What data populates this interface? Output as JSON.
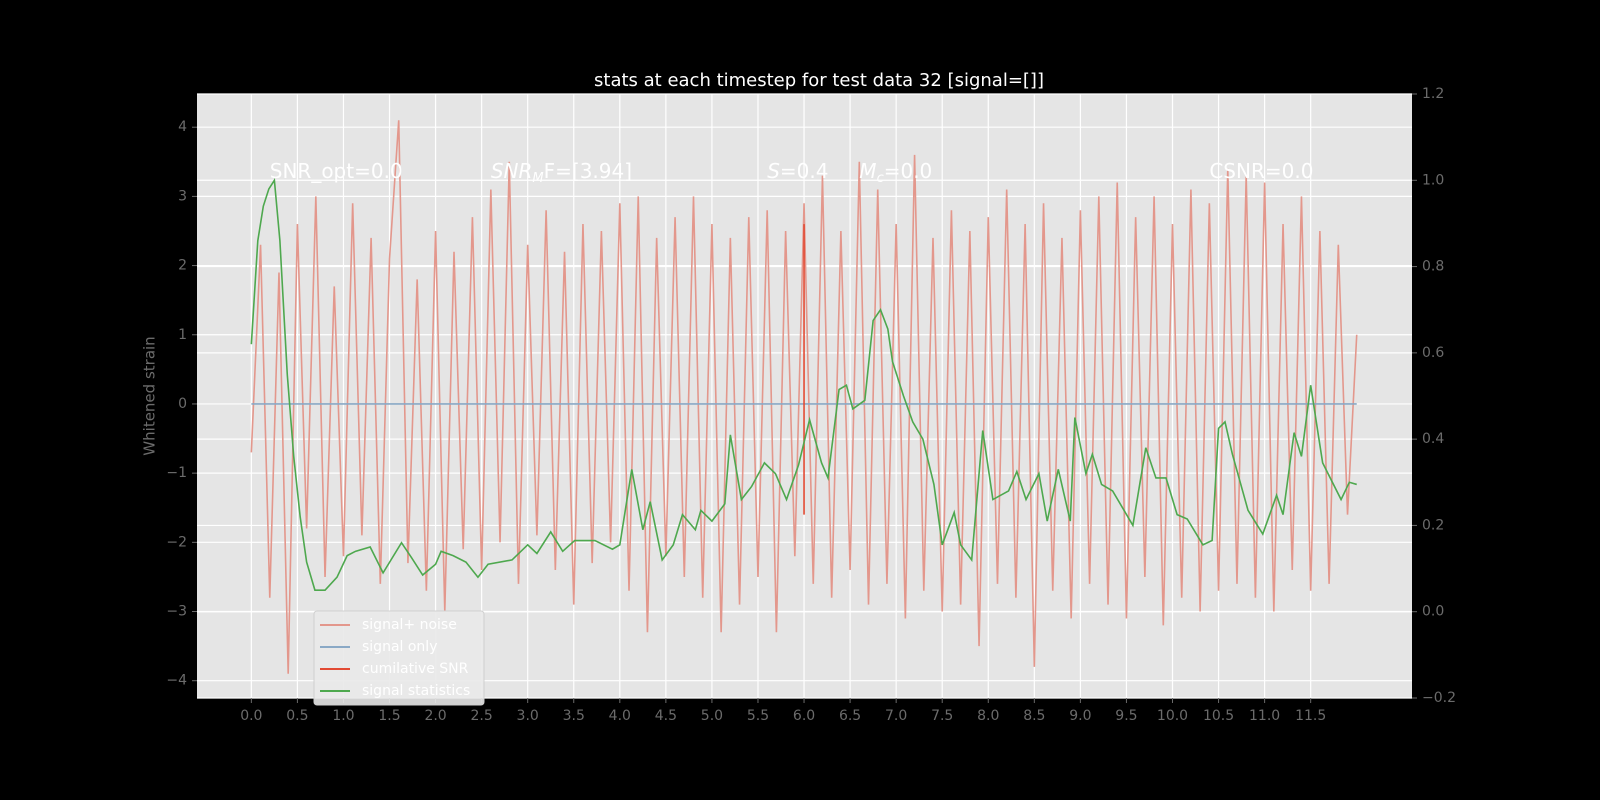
{
  "chart_data": {
    "type": "line",
    "title": "stats at each timestep for test data 32 [signal=[]]",
    "y_label": "Whitened strain",
    "xlim": [
      -0.59,
      12.6
    ],
    "ylim": [
      -4.25,
      4.48
    ],
    "y2lim": [
      -0.2,
      1.2
    ],
    "xticks": [
      {
        "value": 0,
        "label": "0.0"
      },
      {
        "value": 0.5,
        "label": "0.5"
      },
      {
        "value": 1,
        "label": "1.0"
      },
      {
        "value": 1.5,
        "label": "1.5"
      },
      {
        "value": 2,
        "label": "2.0"
      },
      {
        "value": 2.5,
        "label": "2.5"
      },
      {
        "value": 3,
        "label": "3.0"
      },
      {
        "value": 3.5,
        "label": "3.5"
      },
      {
        "value": 4,
        "label": "4.0"
      },
      {
        "value": 4.5,
        "label": "4.5"
      },
      {
        "value": 5,
        "label": "5.0"
      },
      {
        "value": 5.5,
        "label": "5.5"
      },
      {
        "value": 6,
        "label": "6.0"
      },
      {
        "value": 6.5,
        "label": "6.5"
      },
      {
        "value": 7,
        "label": "7.0"
      },
      {
        "value": 7.5,
        "label": "7.5"
      },
      {
        "value": 8,
        "label": "8.0"
      },
      {
        "value": 8.5,
        "label": "8.5"
      },
      {
        "value": 9,
        "label": "9.0"
      },
      {
        "value": 9.5,
        "label": "9.5"
      },
      {
        "value": 10,
        "label": "10.0"
      },
      {
        "value": 10.5,
        "label": "10.5"
      },
      {
        "value": 11,
        "label": "11.0"
      },
      {
        "value": 11.5,
        "label": "11.5"
      }
    ],
    "yticks": [
      {
        "value": -4,
        "label": "−4"
      },
      {
        "value": -3,
        "label": "−3"
      },
      {
        "value": -2,
        "label": "−2"
      },
      {
        "value": -1,
        "label": "−1"
      },
      0,
      1,
      2,
      3,
      4
    ],
    "y2ticks": [
      {
        "value": -0.2,
        "label": "−0.2"
      },
      {
        "value": 0,
        "label": "0.0"
      },
      {
        "value": 0.2,
        "label": "0.2"
      },
      {
        "value": 0.4,
        "label": "0.4"
      },
      {
        "value": 0.6,
        "label": "0.6"
      },
      {
        "value": 0.8,
        "label": "0.8"
      },
      {
        "value": 1,
        "label": "1.0"
      },
      {
        "value": 1.2,
        "label": "1.2"
      }
    ],
    "grid": true,
    "legend": "lower left",
    "series": [
      {
        "name": "signal+ noise",
        "color": "#e3978c",
        "x": [
          0,
          0.1,
          0.2,
          0.3,
          0.4,
          0.5,
          0.6,
          0.7,
          0.8,
          0.9,
          1,
          1.1,
          1.2,
          1.3,
          1.4,
          1.5,
          1.6,
          1.7,
          1.8,
          1.9,
          2,
          2.1,
          2.2,
          2.3,
          2.4,
          2.5,
          2.6,
          2.7,
          2.8,
          2.9,
          3,
          3.1,
          3.2,
          3.3,
          3.4,
          3.5,
          3.6,
          3.7,
          3.8,
          3.9,
          4,
          4.1,
          4.2,
          4.3,
          4.4,
          4.5,
          4.6,
          4.7,
          4.8,
          4.9,
          5,
          5.1,
          5.2,
          5.3,
          5.4,
          5.5,
          5.6,
          5.7,
          5.8,
          5.9,
          6,
          6.1,
          6.2,
          6.3,
          6.4,
          6.5,
          6.6,
          6.7,
          6.8,
          6.9,
          7,
          7.1,
          7.2,
          7.3,
          7.4,
          7.5,
          7.6,
          7.7,
          7.8,
          7.9,
          8,
          8.1,
          8.2,
          8.3,
          8.4,
          8.5,
          8.6,
          8.7,
          8.8,
          8.9,
          9,
          9.1,
          9.2,
          9.3,
          9.4,
          9.5,
          9.6,
          9.7,
          9.8,
          9.9,
          10,
          10.1,
          10.2,
          10.3,
          10.4,
          10.5,
          10.6,
          10.7,
          10.8,
          10.9,
          11,
          11.1,
          11.2,
          11.3,
          11.4,
          11.5,
          11.6,
          11.7,
          11.8,
          11.9,
          12
        ],
        "values": [
          -0.7,
          2.3,
          -2.8,
          1.9,
          -3.9,
          2.6,
          -1.8,
          3.0,
          -2.5,
          1.7,
          -2.2,
          2.9,
          -1.9,
          2.4,
          -2.6,
          2.1,
          4.1,
          -2.3,
          1.8,
          -2.7,
          2.5,
          -3.0,
          2.2,
          -2.1,
          2.7,
          -2.4,
          3.1,
          -2.0,
          3.5,
          -2.6,
          2.3,
          -1.9,
          2.8,
          -2.4,
          2.2,
          -2.9,
          2.6,
          -2.3,
          2.5,
          -2.0,
          2.9,
          -2.7,
          3.0,
          -3.3,
          2.4,
          -2.2,
          2.7,
          -2.5,
          3.0,
          -2.8,
          2.6,
          -3.3,
          2.4,
          -2.9,
          2.7,
          -2.5,
          2.8,
          -3.3,
          2.5,
          -2.2,
          2.9,
          -2.6,
          3.3,
          -2.8,
          2.5,
          -2.4,
          3.5,
          -2.9,
          3.1,
          -2.6,
          2.6,
          -3.1,
          3.6,
          -2.7,
          2.4,
          -3.0,
          2.8,
          -2.9,
          2.5,
          -3.5,
          2.7,
          -2.6,
          3.1,
          -2.8,
          2.6,
          -3.8,
          2.9,
          -2.7,
          2.4,
          -3.1,
          2.8,
          -2.6,
          3.0,
          -2.9,
          3.2,
          -3.1,
          2.7,
          -2.5,
          3.0,
          -3.2,
          2.6,
          -2.8,
          3.1,
          -3.0,
          2.9,
          -2.7,
          3.4,
          -2.6,
          3.3,
          -2.8,
          3.2,
          -3.0,
          2.6,
          -2.4,
          3.0,
          -2.7,
          2.5,
          -2.6,
          2.3,
          -1.6,
          1.0
        ]
      },
      {
        "name": "signal only",
        "color": "#8aa9c6",
        "x": [
          0,
          12
        ],
        "values": [
          0,
          0
        ]
      },
      {
        "name": "cumilative SNR",
        "color": "#e24a33",
        "x": [
          6,
          6
        ],
        "values": [
          2.6,
          -1.6
        ]
      },
      {
        "name": "signal statistics",
        "color": "#4ea84e",
        "axis": "y2",
        "x": [
          0,
          0.07,
          0.13,
          0.19,
          0.25,
          0.31,
          0.39,
          0.46,
          0.53,
          0.6,
          0.69,
          0.8,
          0.93,
          1.04,
          1.13,
          1.29,
          1.43,
          1.63,
          1.74,
          1.86,
          2.0,
          2.06,
          2.19,
          2.33,
          2.46,
          2.57,
          2.83,
          3.0,
          3.1,
          3.25,
          3.38,
          3.51,
          3.73,
          3.92,
          4.0,
          4.13,
          4.25,
          4.33,
          4.46,
          4.58,
          4.68,
          4.82,
          4.88,
          5.0,
          5.14,
          5.2,
          5.32,
          5.43,
          5.57,
          5.69,
          5.81,
          5.94,
          6.06,
          6.19,
          6.26,
          6.38,
          6.46,
          6.53,
          6.66,
          6.75,
          6.83,
          6.91,
          6.96,
          7.08,
          7.18,
          7.29,
          7.41,
          7.5,
          7.63,
          7.7,
          7.82,
          7.94,
          8.05,
          8.22,
          8.31,
          8.41,
          8.55,
          8.64,
          8.76,
          8.89,
          8.94,
          9.06,
          9.13,
          9.23,
          9.35,
          9.57,
          9.71,
          9.82,
          9.93,
          10.05,
          10.16,
          10.33,
          10.43,
          10.5,
          10.57,
          10.65,
          10.82,
          10.98,
          11.13,
          11.2,
          11.32,
          11.4,
          11.5,
          11.59,
          11.63,
          11.83,
          11.92,
          12.0
        ],
        "values": [
          0.62,
          0.86,
          0.94,
          0.98,
          1.0,
          0.86,
          0.55,
          0.36,
          0.22,
          0.115,
          0.05,
          0.05,
          0.08,
          0.13,
          0.14,
          0.15,
          0.09,
          0.16,
          0.125,
          0.085,
          0.11,
          0.14,
          0.13,
          0.115,
          0.08,
          0.11,
          0.12,
          0.155,
          0.135,
          0.185,
          0.14,
          0.165,
          0.165,
          0.145,
          0.155,
          0.33,
          0.19,
          0.255,
          0.12,
          0.155,
          0.225,
          0.19,
          0.235,
          0.21,
          0.25,
          0.41,
          0.26,
          0.29,
          0.345,
          0.32,
          0.26,
          0.34,
          0.445,
          0.345,
          0.31,
          0.515,
          0.525,
          0.47,
          0.49,
          0.675,
          0.7,
          0.655,
          0.58,
          0.5,
          0.44,
          0.4,
          0.295,
          0.155,
          0.23,
          0.155,
          0.12,
          0.42,
          0.26,
          0.28,
          0.325,
          0.26,
          0.32,
          0.21,
          0.33,
          0.21,
          0.45,
          0.32,
          0.365,
          0.295,
          0.28,
          0.2,
          0.38,
          0.31,
          0.31,
          0.225,
          0.215,
          0.155,
          0.165,
          0.425,
          0.44,
          0.365,
          0.235,
          0.18,
          0.27,
          0.225,
          0.415,
          0.36,
          0.525,
          0.4,
          0.345,
          0.26,
          0.3,
          0.295
        ]
      }
    ],
    "annotations": [
      {
        "text": "SNR_opt=0.0",
        "x": 0.2,
        "y": 3.35
      },
      {
        "text": "SNR",
        "sub": "M",
        "after": "F=[3.94]",
        "italic": true,
        "x": 2.6,
        "y": 3.35
      },
      {
        "text": "S",
        "after": "=0.4",
        "italic": true,
        "x": 5.6,
        "y": 3.35
      },
      {
        "text": "M",
        "sub": "c",
        "after": "=0.0",
        "italic": true,
        "x": 6.6,
        "y": 3.35
      },
      {
        "text": "CSNR=0.0",
        "x": 10.4,
        "y": 3.35
      }
    ]
  }
}
